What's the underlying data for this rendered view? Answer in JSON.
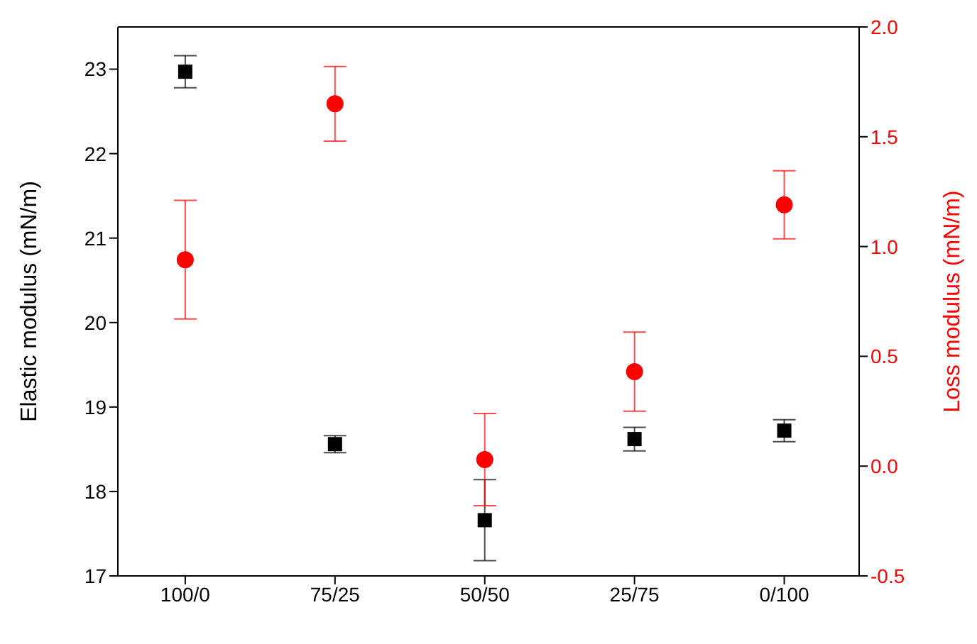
{
  "chart_data": {
    "type": "scatter",
    "ylabel": "Elastic modulus (mN/m)",
    "y2label": "Loss modulus (mN/m)",
    "categories": [
      "100/0",
      "75/25",
      "50/50",
      "25/75",
      "0/100"
    ],
    "ylim": [
      17,
      23.5
    ],
    "yticks": [
      17,
      18,
      19,
      20,
      21,
      22,
      23
    ],
    "y2lim": [
      -0.5,
      2.0
    ],
    "y2ticks": [
      {
        "value": -0.5,
        "label": "-0.5"
      },
      {
        "value": 0,
        "label": "0.0"
      },
      {
        "value": 0.5,
        "label": "0.5"
      },
      {
        "value": 1,
        "label": "1.0"
      },
      {
        "value": 1.5,
        "label": "1.5"
      },
      {
        "value": 2,
        "label": "2.0"
      }
    ],
    "series": [
      {
        "color": "#000000",
        "marker": "square",
        "values": [
          22.97,
          18.56,
          17.66,
          18.62,
          18.72
        ],
        "errors": [
          0.19,
          0.1,
          0.48,
          0.14,
          0.13
        ]
      },
      {
        "color": "#ff0000",
        "marker": "circle",
        "axis": "y2",
        "values": [
          0.94,
          1.65,
          0.03,
          0.43,
          1.19
        ],
        "errors": [
          0.27,
          0.17,
          0.21,
          0.18,
          0.155
        ]
      }
    ]
  }
}
